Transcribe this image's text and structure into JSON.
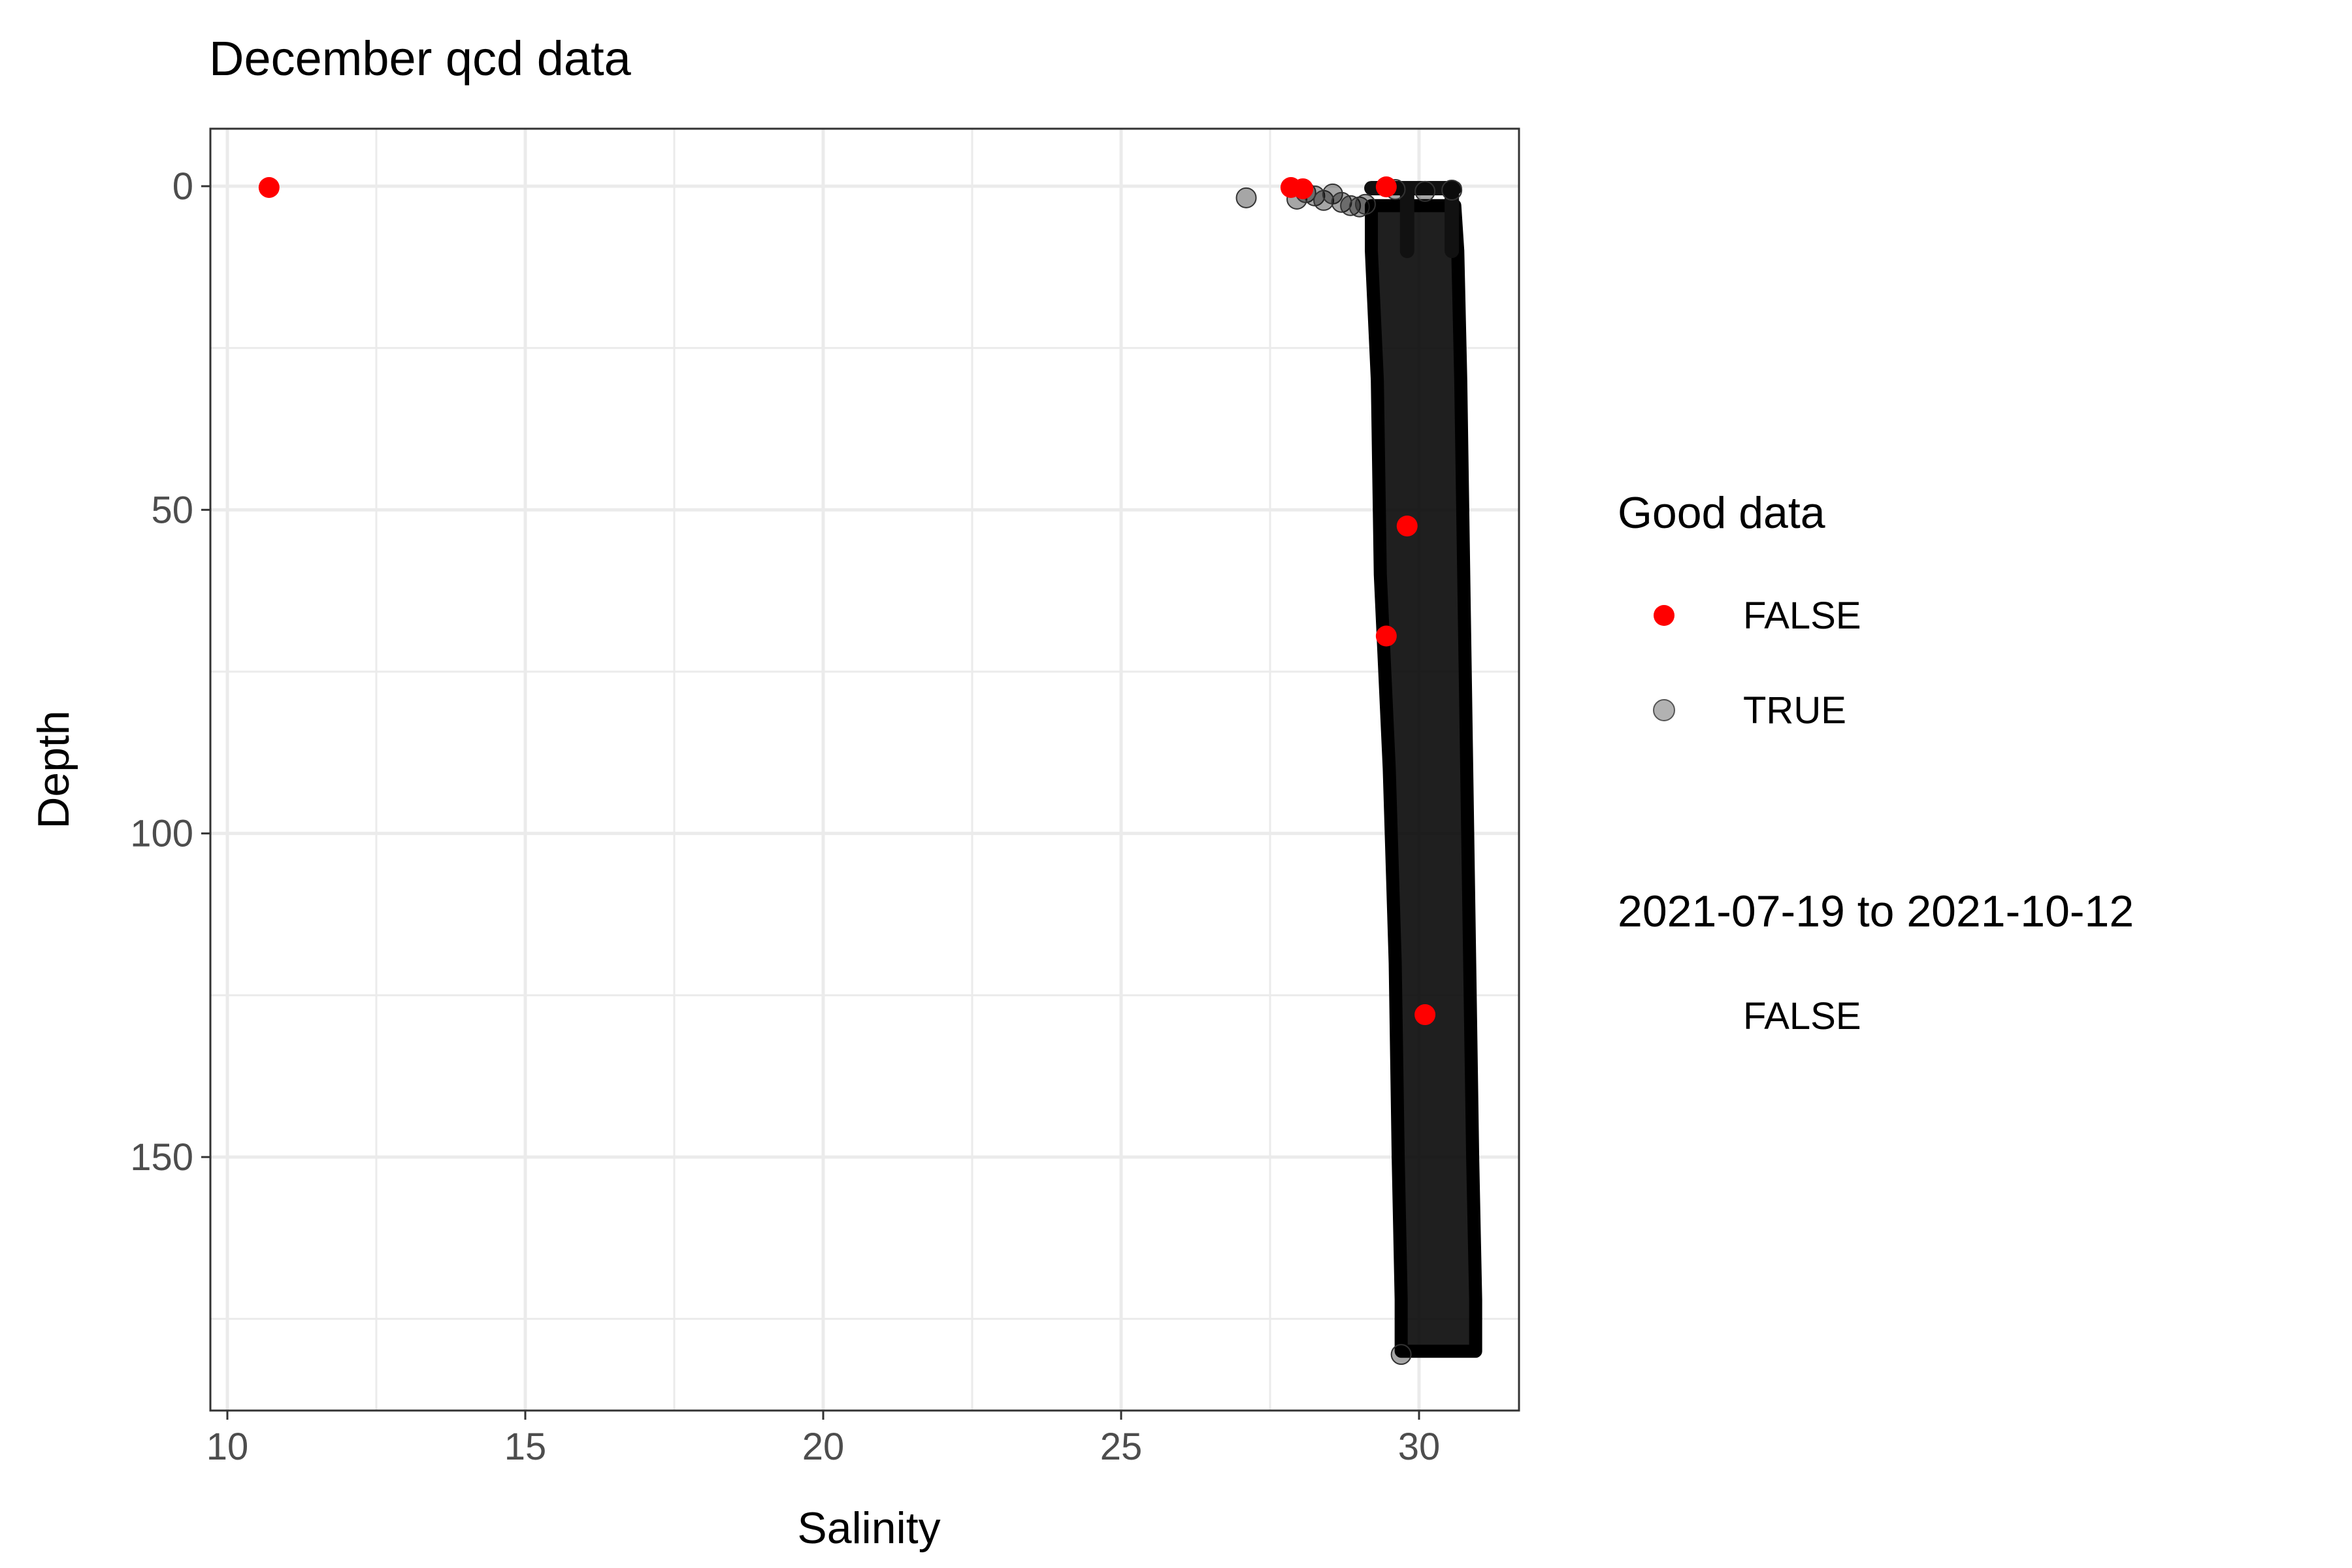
{
  "chart_data": {
    "type": "scatter",
    "title": "December qcd data",
    "xlabel": "Salinity",
    "ylabel": "Depth",
    "xlim": [
      9.7,
      31.8
    ],
    "ylim": [
      0,
      190
    ],
    "y_reversed": true,
    "x_ticks": [
      10,
      15,
      20,
      25,
      30
    ],
    "y_ticks": [
      0,
      50,
      100,
      150
    ],
    "grid": true,
    "legend_position": "right",
    "legend": [
      {
        "title": "Good data",
        "items": [
          {
            "label": "FALSE",
            "color": "#ff0000",
            "shape": "point"
          },
          {
            "label": "TRUE",
            "color": "#7f7f7f",
            "shape": "point"
          }
        ]
      },
      {
        "title": "2021-07-19 to 2021-10-12",
        "items": [
          {
            "label": "FALSE",
            "shape": "none"
          }
        ]
      }
    ],
    "profile_band": {
      "description_color": "#000000",
      "depth": [
        3,
        10,
        30,
        60,
        90,
        120,
        150,
        172,
        180
      ],
      "salinity_min": [
        29.2,
        29.2,
        29.3,
        29.35,
        29.5,
        29.6,
        29.65,
        29.7,
        29.7
      ],
      "salinity_max": [
        30.6,
        30.65,
        30.7,
        30.75,
        30.8,
        30.85,
        30.9,
        30.95,
        30.95
      ]
    },
    "series": [
      {
        "name": "TRUE",
        "color": "#000000",
        "points": [
          {
            "x": 27.1,
            "y": 1.8
          },
          {
            "x": 27.95,
            "y": 2.0
          },
          {
            "x": 28.1,
            "y": 1.0
          },
          {
            "x": 28.25,
            "y": 1.5
          },
          {
            "x": 28.4,
            "y": 2.2
          },
          {
            "x": 28.55,
            "y": 1.2
          },
          {
            "x": 28.7,
            "y": 2.5
          },
          {
            "x": 28.85,
            "y": 3.0
          },
          {
            "x": 29.0,
            "y": 3.2
          },
          {
            "x": 29.1,
            "y": 2.8
          },
          {
            "x": 29.6,
            "y": 0.5
          },
          {
            "x": 30.1,
            "y": 0.8
          },
          {
            "x": 30.55,
            "y": 0.6
          },
          {
            "x": 29.7,
            "y": 180.5
          }
        ]
      },
      {
        "name": "FALSE",
        "color": "#ff0000",
        "points": [
          {
            "x": 10.7,
            "y": 0.2
          },
          {
            "x": 27.85,
            "y": 0.2
          },
          {
            "x": 28.05,
            "y": 0.4
          },
          {
            "x": 29.45,
            "y": 0.1
          },
          {
            "x": 29.8,
            "y": 52.5
          },
          {
            "x": 29.45,
            "y": 69.5
          },
          {
            "x": 30.1,
            "y": 128
          }
        ]
      }
    ]
  }
}
